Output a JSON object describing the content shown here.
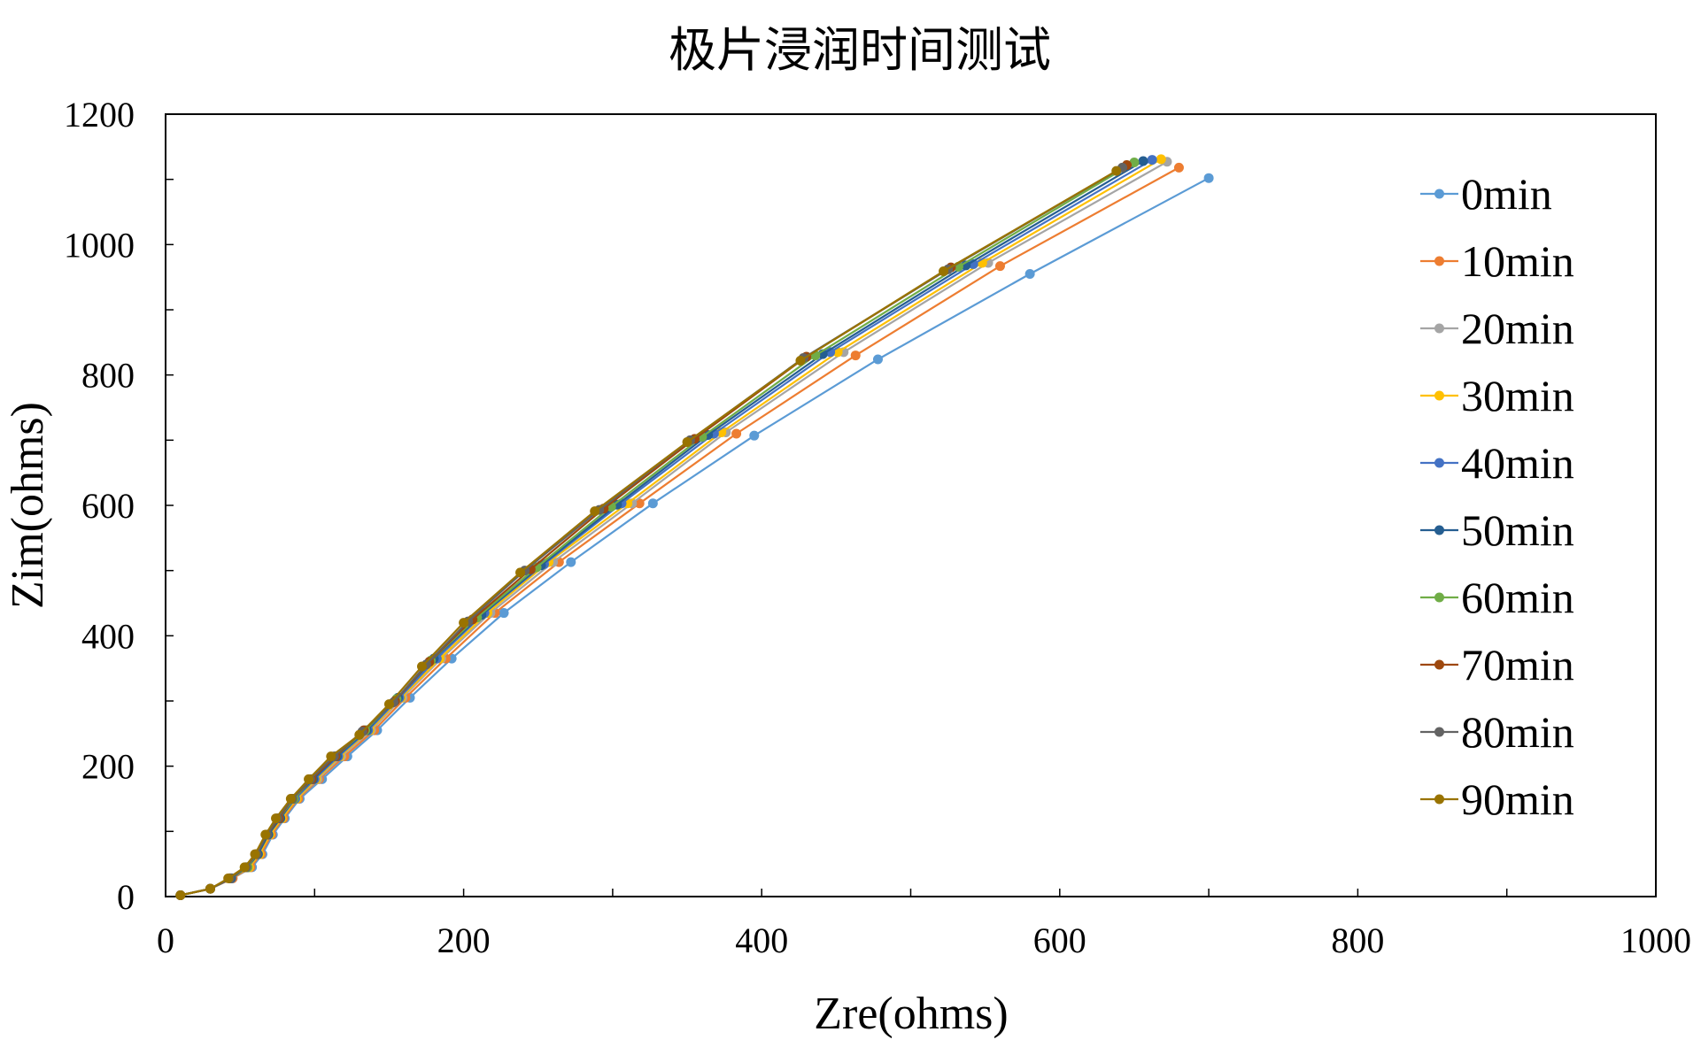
{
  "chart_data": {
    "type": "line",
    "title": "极片浸润时间测试",
    "xlabel": "Zre(ohms)",
    "ylabel": "Zim(ohms)",
    "xlim": [
      0,
      1000
    ],
    "ylim": [
      0,
      1200
    ],
    "xticks": [
      "0",
      "200",
      "400",
      "600",
      "800",
      "1000"
    ],
    "yticks": [
      "0",
      "200",
      "400",
      "600",
      "800",
      "1000",
      "1200"
    ],
    "grid": false,
    "legend_position": "right",
    "series": [
      {
        "name": "0min",
        "color": "#5B9BD5",
        "x": [
          10,
          30,
          45,
          58,
          65,
          72,
          80,
          90,
          105,
          122,
          142,
          164,
          192,
          227,
          272,
          327,
          395,
          478,
          580,
          700
        ],
        "y": [
          2,
          12,
          28,
          45,
          65,
          95,
          120,
          150,
          180,
          215,
          255,
          305,
          365,
          435,
          513,
          603,
          707,
          824,
          955,
          1102
        ]
      },
      {
        "name": "10min",
        "color": "#ED7D31",
        "x": [
          10,
          30,
          45,
          57,
          64,
          71,
          79,
          89,
          103,
          120,
          140,
          161,
          188,
          221,
          264,
          318,
          383,
          463,
          560,
          680
        ],
        "y": [
          2,
          12,
          28,
          45,
          65,
          95,
          120,
          150,
          180,
          215,
          255,
          305,
          365,
          435,
          513,
          603,
          710,
          830,
          967,
          1118
        ]
      },
      {
        "name": "20min",
        "color": "#A5A5A5",
        "x": [
          10,
          30,
          44,
          56,
          63,
          70,
          78,
          88,
          102,
          118,
          138,
          159,
          185,
          218,
          260,
          313,
          376,
          455,
          552,
          672
        ],
        "y": [
          2,
          12,
          28,
          45,
          65,
          95,
          120,
          150,
          180,
          215,
          255,
          305,
          365,
          435,
          513,
          603,
          712,
          835,
          972,
          1127
        ]
      },
      {
        "name": "30min",
        "color": "#FFC000",
        "x": [
          10,
          30,
          44,
          56,
          63,
          70,
          78,
          88,
          101,
          117,
          137,
          158,
          184,
          216,
          257,
          310,
          373,
          451,
          548,
          668
        ],
        "y": [
          2,
          12,
          28,
          45,
          65,
          95,
          120,
          150,
          180,
          215,
          255,
          305,
          365,
          435,
          513,
          603,
          712,
          835,
          972,
          1131
        ]
      },
      {
        "name": "40min",
        "color": "#4472C4",
        "x": [
          10,
          30,
          44,
          55,
          62,
          69,
          77,
          87,
          100,
          116,
          136,
          157,
          182,
          214,
          254,
          306,
          368,
          446,
          542,
          662
        ],
        "y": [
          2,
          12,
          28,
          45,
          65,
          95,
          120,
          150,
          180,
          215,
          255,
          305,
          365,
          435,
          510,
          603,
          710,
          835,
          970,
          1130
        ]
      },
      {
        "name": "50min",
        "color": "#255E91",
        "x": [
          10,
          30,
          44,
          55,
          62,
          69,
          77,
          86,
          99,
          115,
          135,
          156,
          180,
          212,
          252,
          303,
          364,
          441,
          537,
          656
        ],
        "y": [
          2,
          12,
          28,
          45,
          65,
          95,
          120,
          150,
          180,
          215,
          255,
          305,
          365,
          432,
          508,
          601,
          708,
          832,
          968,
          1128
        ]
      },
      {
        "name": "60min",
        "color": "#70AD47",
        "x": [
          10,
          30,
          43,
          55,
          61,
          68,
          76,
          86,
          98,
          114,
          134,
          155,
          178,
          209,
          249,
          299,
          360,
          436,
          532,
          650
        ],
        "y": [
          2,
          12,
          28,
          45,
          65,
          95,
          120,
          150,
          180,
          215,
          255,
          303,
          362,
          428,
          505,
          598,
          705,
          830,
          966,
          1126
        ]
      },
      {
        "name": "70min",
        "color": "#9E480E",
        "x": [
          10,
          30,
          43,
          54,
          61,
          68,
          76,
          85,
          98,
          114,
          133,
          154,
          177,
          206,
          245,
          294,
          355,
          430,
          527,
          645
        ],
        "y": [
          2,
          12,
          28,
          45,
          65,
          95,
          120,
          150,
          180,
          215,
          255,
          300,
          360,
          425,
          502,
          595,
          702,
          828,
          965,
          1122
        ]
      },
      {
        "name": "80min",
        "color": "#636363",
        "x": [
          10,
          30,
          43,
          54,
          61,
          68,
          75,
          85,
          97,
          113,
          132,
          153,
          175,
          203,
          241,
          291,
          352,
          428,
          525,
          642
        ],
        "y": [
          2,
          12,
          28,
          45,
          65,
          95,
          120,
          150,
          180,
          215,
          253,
          298,
          356,
          422,
          500,
          593,
          700,
          826,
          962,
          1118
        ]
      },
      {
        "name": "90min",
        "color": "#997300",
        "x": [
          10,
          30,
          42,
          53,
          60,
          67,
          74,
          84,
          96,
          111,
          130,
          150,
          172,
          200,
          238,
          288,
          350,
          426,
          522,
          638
        ],
        "y": [
          2,
          12,
          28,
          45,
          65,
          95,
          120,
          150,
          180,
          215,
          248,
          295,
          353,
          420,
          497,
          591,
          697,
          822,
          959,
          1113
        ]
      }
    ]
  }
}
